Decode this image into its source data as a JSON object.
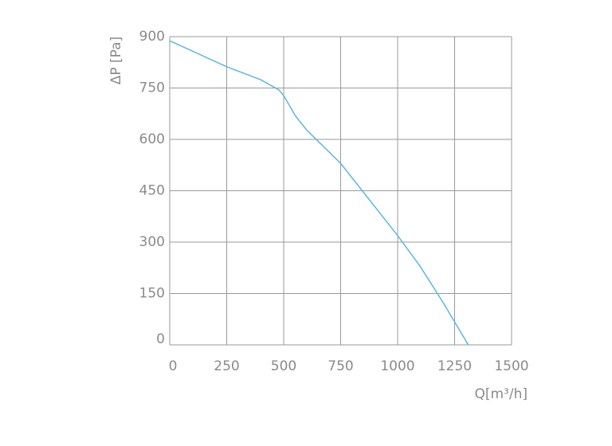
{
  "chart_data": {
    "type": "line",
    "x_label": "Q[m³/h]",
    "y_label": "ΔP [Pa]",
    "x": [
      0,
      250,
      400,
      480,
      500,
      550,
      600,
      750,
      1000,
      1100,
      1200,
      1310
    ],
    "series": [
      {
        "color": "#5bb8dc",
        "values": [
          888,
          812,
          774,
          744,
          728,
          670,
          628,
          530,
          319,
          228,
          123,
          0
        ]
      }
    ],
    "xlim": [
      0,
      1500
    ],
    "xticks": [
      0,
      250,
      500,
      750,
      1000,
      1250,
      1500
    ],
    "ylim": [
      0,
      900
    ],
    "yticks": [
      0,
      150,
      300,
      450,
      600,
      750,
      900
    ],
    "grid": true
  }
}
